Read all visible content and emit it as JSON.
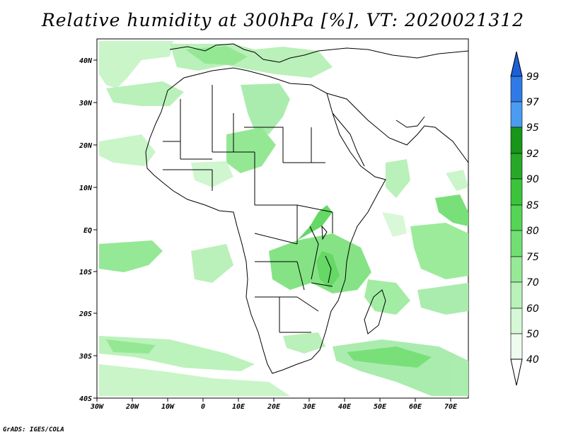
{
  "title": "Relative humidity at 300hPa [%], VT: 2020021312",
  "footer": "GrADS: IGES/COLA",
  "axes": {
    "lon_labels": [
      "30W",
      "20W",
      "10W",
      "0",
      "10E",
      "20E",
      "30E",
      "40E",
      "50E",
      "60E",
      "70E"
    ],
    "lat_labels": [
      "40N",
      "30N",
      "20N",
      "10N",
      "EQ",
      "10S",
      "20S",
      "30S",
      "40S"
    ]
  },
  "colorbar": {
    "levels": [
      "99",
      "97",
      "95",
      "92",
      "90",
      "85",
      "80",
      "75",
      "70",
      "60",
      "50",
      "40"
    ],
    "colors": [
      "#1d5fd8",
      "#2f7ae6",
      "#4b9bf0",
      "#17961a",
      "#27a827",
      "#3cc33c",
      "#55d455",
      "#72df72",
      "#96ea96",
      "#b9f2b9",
      "#d6f8d6",
      "#eefcee"
    ]
  }
}
